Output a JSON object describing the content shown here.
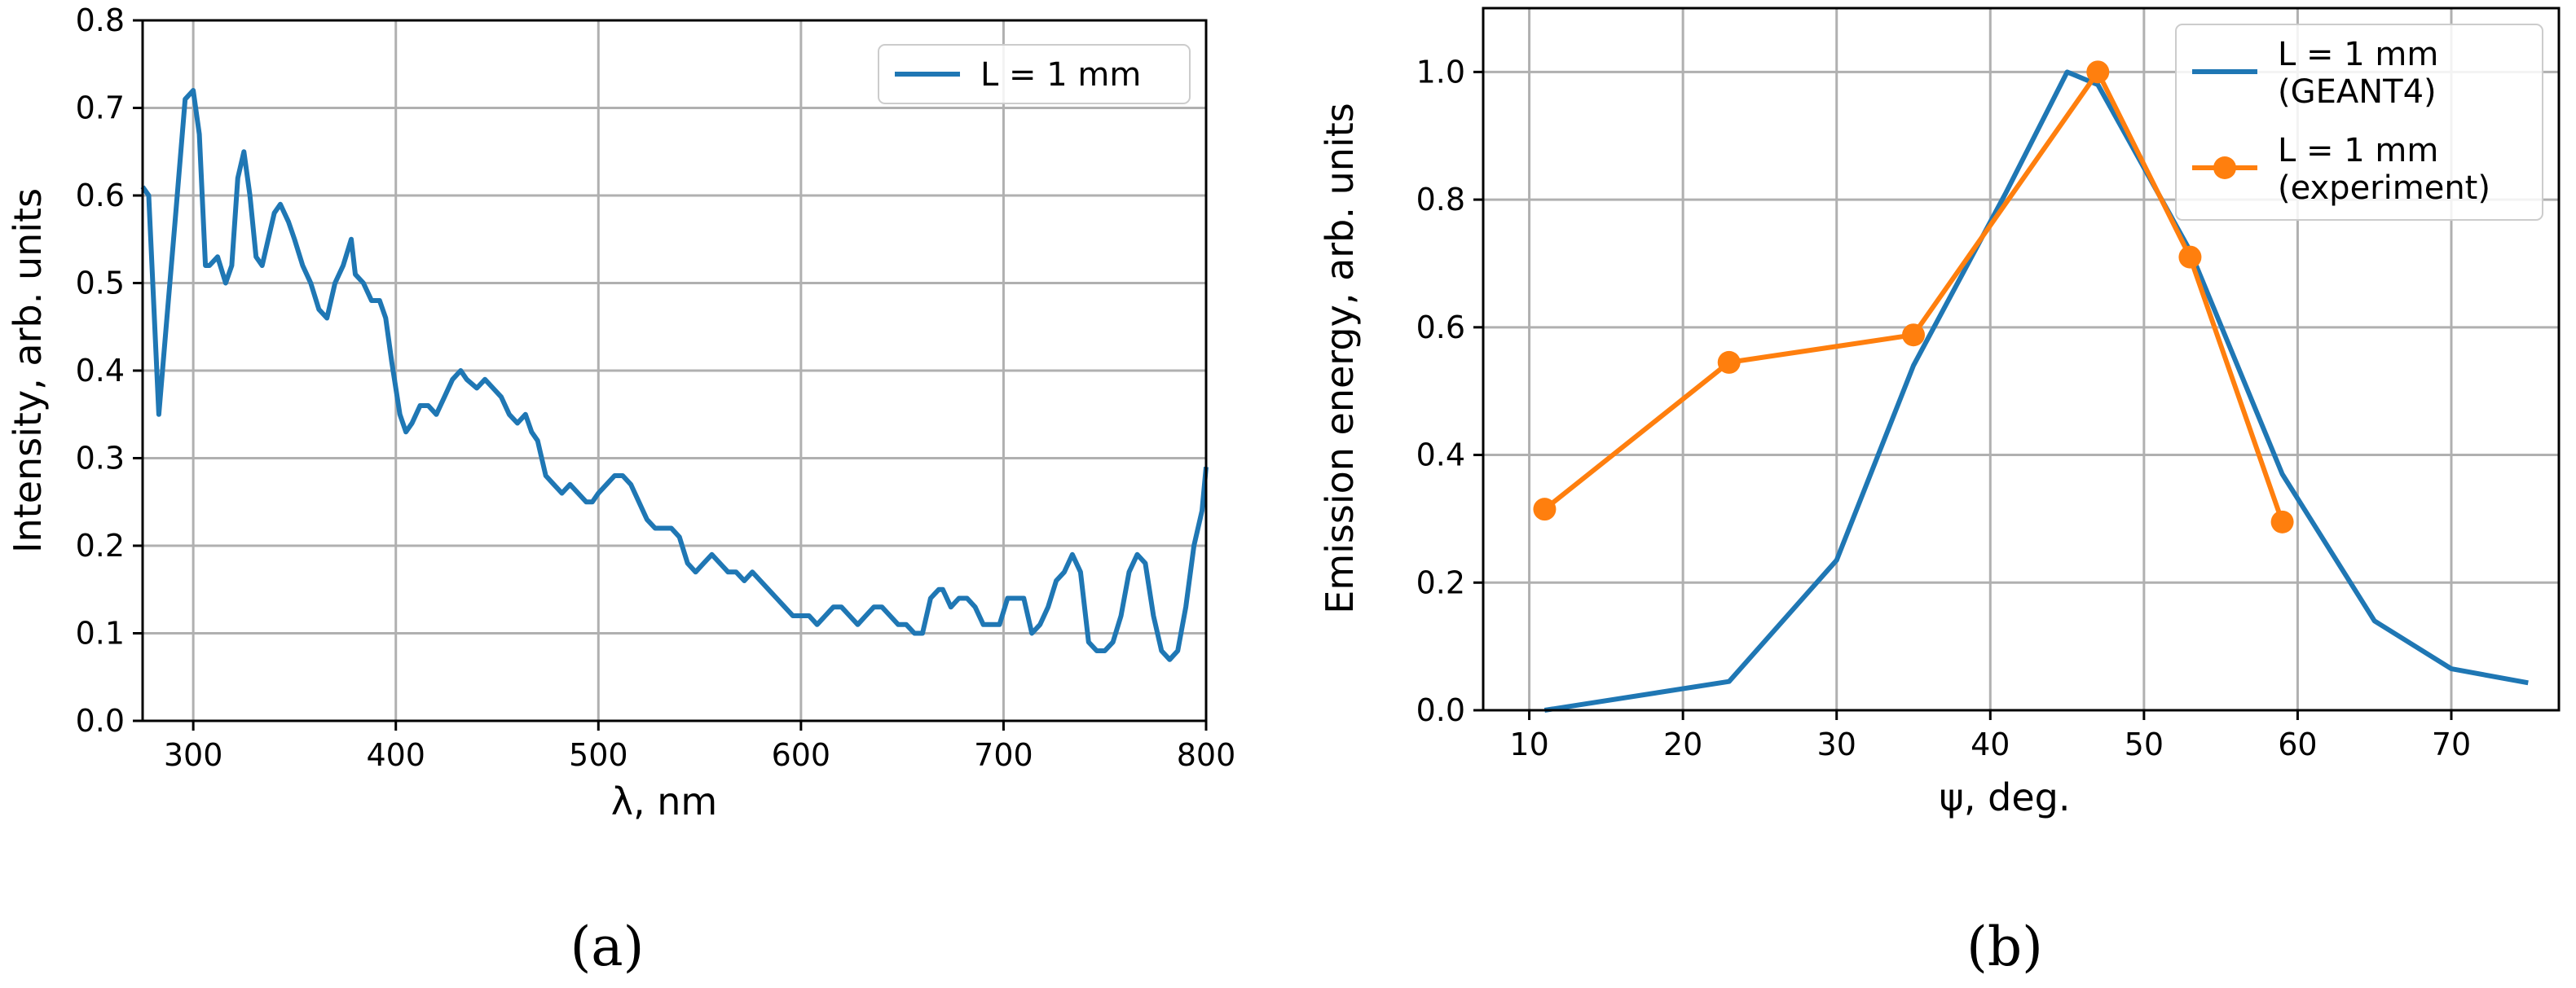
{
  "chart_data": [
    {
      "type": "line",
      "panel_label": "(a)",
      "xlabel": "λ, nm",
      "ylabel": "Intensity, arb. units",
      "xlim": [
        275,
        800
      ],
      "ylim": [
        0,
        0.8
      ],
      "xticks": [
        "300",
        "400",
        "500",
        "600",
        "700",
        "800"
      ],
      "yticks": [
        "0.0",
        "0.1",
        "0.2",
        "0.3",
        "0.4",
        "0.5",
        "0.6",
        "0.7",
        "0.8"
      ],
      "grid": true,
      "legend_position": "top-right",
      "series": [
        {
          "name": "L = 1 mm",
          "color": "#1f77b4",
          "x": [
            275,
            278,
            283,
            287,
            291,
            296,
            300,
            303,
            306,
            308,
            312,
            316,
            319,
            322,
            325,
            328,
            331,
            334,
            337,
            340,
            343,
            347,
            350,
            354,
            358,
            362,
            366,
            370,
            374,
            378,
            380,
            384,
            388,
            392,
            395,
            398,
            402,
            405,
            408,
            412,
            416,
            420,
            424,
            428,
            432,
            435,
            440,
            444,
            448,
            452,
            456,
            460,
            464,
            467,
            470,
            474,
            478,
            482,
            486,
            490,
            494,
            497,
            500,
            504,
            508,
            512,
            516,
            520,
            524,
            528,
            532,
            536,
            540,
            544,
            548,
            552,
            556,
            560,
            564,
            568,
            572,
            576,
            580,
            584,
            588,
            592,
            596,
            600,
            604,
            608,
            612,
            616,
            620,
            624,
            628,
            632,
            636,
            640,
            644,
            648,
            652,
            656,
            660,
            664,
            668,
            670,
            674,
            678,
            682,
            686,
            690,
            694,
            698,
            702,
            706,
            710,
            714,
            718,
            722,
            726,
            730,
            734,
            738,
            742,
            746,
            750,
            754,
            758,
            762,
            766,
            770,
            774,
            778,
            782,
            786,
            790,
            794,
            798,
            800
          ],
          "y": [
            0.61,
            0.6,
            0.35,
            0.46,
            0.57,
            0.71,
            0.72,
            0.67,
            0.52,
            0.52,
            0.53,
            0.5,
            0.52,
            0.62,
            0.65,
            0.6,
            0.53,
            0.52,
            0.55,
            0.58,
            0.59,
            0.57,
            0.55,
            0.52,
            0.5,
            0.47,
            0.46,
            0.5,
            0.52,
            0.55,
            0.51,
            0.5,
            0.48,
            0.48,
            0.46,
            0.41,
            0.35,
            0.33,
            0.34,
            0.36,
            0.36,
            0.35,
            0.37,
            0.39,
            0.4,
            0.39,
            0.38,
            0.39,
            0.38,
            0.37,
            0.35,
            0.34,
            0.35,
            0.33,
            0.32,
            0.28,
            0.27,
            0.26,
            0.27,
            0.26,
            0.25,
            0.25,
            0.26,
            0.27,
            0.28,
            0.28,
            0.27,
            0.25,
            0.23,
            0.22,
            0.22,
            0.22,
            0.21,
            0.18,
            0.17,
            0.18,
            0.19,
            0.18,
            0.17,
            0.17,
            0.16,
            0.17,
            0.16,
            0.15,
            0.14,
            0.13,
            0.12,
            0.12,
            0.12,
            0.11,
            0.12,
            0.13,
            0.13,
            0.12,
            0.11,
            0.12,
            0.13,
            0.13,
            0.12,
            0.11,
            0.11,
            0.1,
            0.1,
            0.14,
            0.15,
            0.15,
            0.13,
            0.14,
            0.14,
            0.13,
            0.11,
            0.11,
            0.11,
            0.14,
            0.14,
            0.14,
            0.1,
            0.11,
            0.13,
            0.16,
            0.17,
            0.19,
            0.17,
            0.09,
            0.08,
            0.08,
            0.09,
            0.12,
            0.17,
            0.19,
            0.18,
            0.12,
            0.08,
            0.07,
            0.08,
            0.13,
            0.2,
            0.24,
            0.29
          ]
        }
      ]
    },
    {
      "type": "line",
      "panel_label": "(b)",
      "xlabel": "ψ, deg.",
      "ylabel": "Emission energy, arb. units",
      "xlim": [
        7,
        77
      ],
      "ylim": [
        0,
        1.1
      ],
      "xticks": [
        "10",
        "20",
        "30",
        "40",
        "50",
        "60",
        "70"
      ],
      "yticks": [
        "0.0",
        "0.2",
        "0.4",
        "0.6",
        "0.8",
        "1.0"
      ],
      "grid": true,
      "legend_position": "top-right",
      "series": [
        {
          "name": "L = 1 mm (GEANT4)",
          "legend_lines": [
            "L = 1 mm",
            "(GEANT4)"
          ],
          "color": "#1f77b4",
          "x": [
            11,
            23,
            30,
            35,
            41,
            45,
            47,
            53,
            59,
            65,
            70,
            75
          ],
          "y": [
            0.0,
            0.045,
            0.235,
            0.54,
            0.81,
            1.0,
            0.98,
            0.72,
            0.37,
            0.14,
            0.065,
            0.043
          ]
        },
        {
          "name": "L = 1 mm (experiment)",
          "legend_lines": [
            "L = 1 mm",
            "(experiment)"
          ],
          "color": "#ff7f0e",
          "marker": "circle",
          "x": [
            11,
            23,
            35,
            47,
            53,
            59
          ],
          "y": [
            0.315,
            0.545,
            0.588,
            1.0,
            0.71,
            0.295
          ]
        }
      ]
    }
  ]
}
